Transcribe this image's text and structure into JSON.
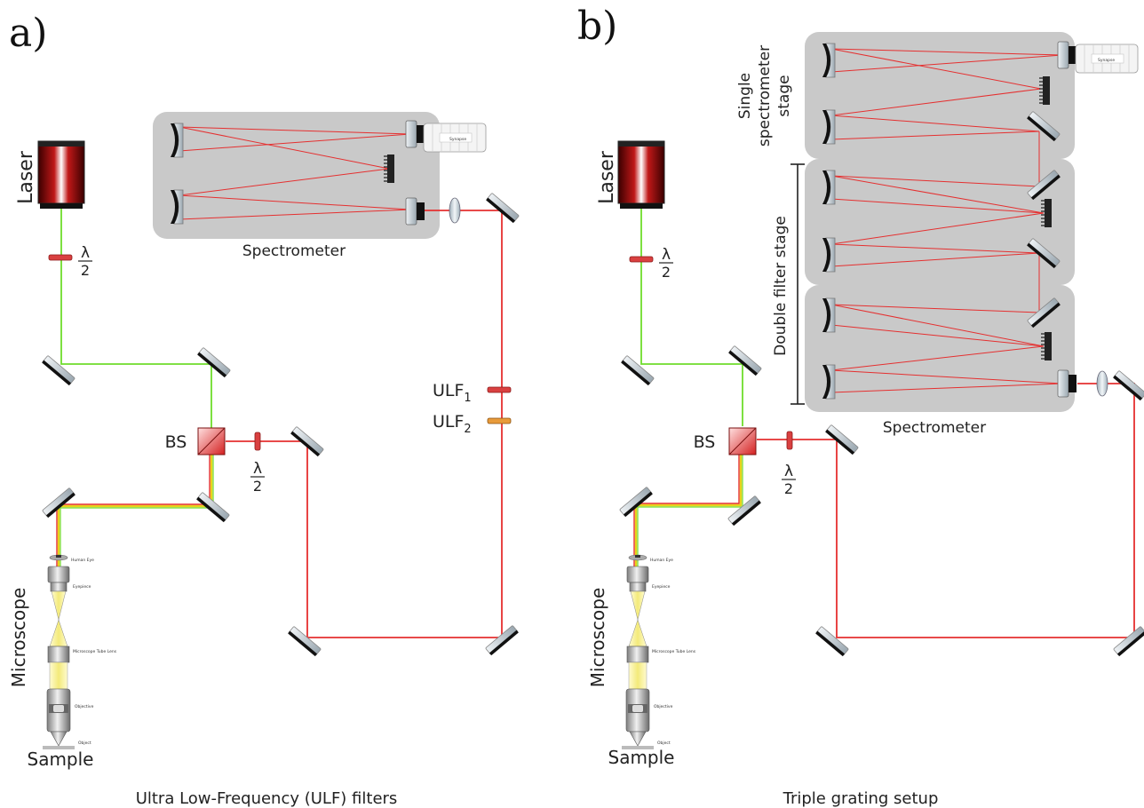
{
  "panel_a": {
    "letter": "a)",
    "laser": "Laser",
    "half_wave_num": "λ",
    "half_wave_den": "2",
    "bs": "BS",
    "spectrometer": "Spectrometer",
    "ulf1": "ULF",
    "ulf1_sub": "1",
    "ulf2": "ULF",
    "ulf2_sub": "2",
    "microscope": "Microscope",
    "sample": "Sample",
    "caption": "Ultra Low-Frequency (ULF) filters"
  },
  "panel_b": {
    "letter": "b)",
    "laser": "Laser",
    "half_wave_num": "λ",
    "half_wave_den": "2",
    "bs": "BS",
    "spectrometer": "Spectrometer",
    "single_stage": [
      "Single",
      "spectrometer",
      "stage"
    ],
    "double_stage": "Double filter stage",
    "microscope": "Microscope",
    "sample": "Sample",
    "caption": "Triple grating setup"
  },
  "microscope_labels": {
    "human_eye": "Human Eye",
    "eyepiece": "Eyepiece",
    "tube_lens": "Microscope Tube Lens",
    "objective": "Objective",
    "object": "Object"
  },
  "camera_brand": "Synapse",
  "colors": {
    "green_beam": "#6fdc2c",
    "red_beam": "#e53030",
    "yellow_beam": "#e8d21a",
    "box_fill": "#c9c9c9",
    "waveplate": "#d94040",
    "ulf2_color": "#e89b3a"
  }
}
